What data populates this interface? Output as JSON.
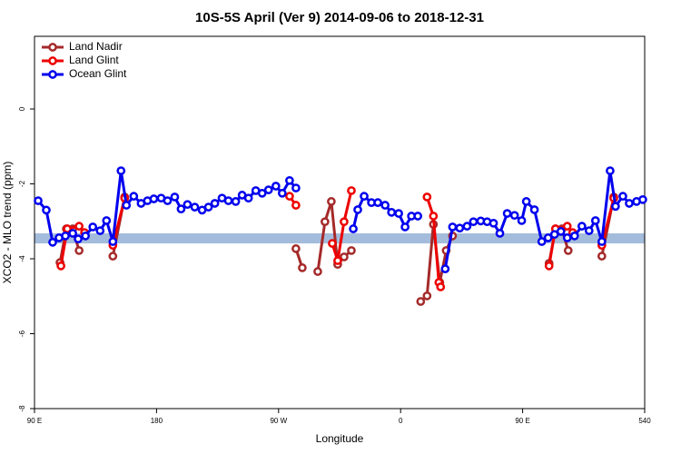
{
  "chart_data": {
    "type": "line",
    "title": "10S-5S April (Ver 9)   2014-09-06 to 2018-12-31",
    "x_label": "Longitude",
    "y_label": "XCO2 - MLO trend (ppm)",
    "xlim": [
      90,
      540
    ],
    "ylim": [
      -8,
      1.94
    ],
    "xticks": [
      {
        "value": 90,
        "label": "90 E"
      },
      180,
      {
        "value": 270,
        "label": "90 W"
      },
      {
        "value": 360,
        "label": "0"
      },
      {
        "value": 450,
        "label": "90 E"
      },
      540
    ],
    "yticks": [
      -8,
      -6,
      -4,
      -2,
      0
    ],
    "legend": "top-left",
    "band": {
      "ylim": [
        -3.59,
        -3.32
      ],
      "color": "#a4bcdc"
    },
    "series": [
      {
        "name": "Land Nadir",
        "color": "#a52a2a",
        "x": [
          108.8,
          113.5,
          118.2,
          122.9,
          null,
          147.8,
          156.5,
          null,
          282.8,
          287.5,
          null,
          298.9,
          304.2,
          308.9,
          313.6,
          318.3,
          323.7,
          null,
          374.8,
          379.5,
          384.2,
          388.9,
          393.6,
          398.3,
          null,
          469.5,
          474.2,
          478.9,
          483.6,
          null,
          508.4,
          517.2
        ],
        "values": [
          -4.1,
          -3.2,
          -3.2,
          -3.78,
          null,
          -3.93,
          -2.35,
          null,
          -3.73,
          -4.24,
          null,
          -4.34,
          -3.01,
          -2.47,
          -4.15,
          -3.95,
          -3.78,
          null,
          -5.14,
          -4.99,
          -3.08,
          -4.63,
          -3.78,
          -3.39,
          null,
          -4.12,
          -3.2,
          -3.2,
          -3.78,
          null,
          -3.93,
          -2.35
        ]
      },
      {
        "name": "Land Glint",
        "color": "#ee0000",
        "x": [
          109.5,
          114.2,
          122.9,
          126.9,
          null,
          147.8,
          156.5,
          null,
          278.1,
          282.8,
          null,
          309.6,
          313.6,
          318.3,
          323.7,
          null,
          379.5,
          384.2,
          388.2,
          389.5,
          null,
          469.5,
          474.2,
          482.9,
          486.9,
          null,
          508.4,
          517.2
        ],
        "values": [
          -4.19,
          -3.2,
          -3.13,
          -3.3,
          null,
          -3.64,
          -2.38,
          null,
          -2.33,
          -2.57,
          null,
          -3.59,
          -4.05,
          -3.01,
          -2.18,
          null,
          -2.35,
          -2.86,
          -4.63,
          -4.75,
          null,
          -4.19,
          -3.2,
          -3.13,
          -3.3,
          null,
          -3.64,
          -2.38
        ]
      },
      {
        "name": "Ocean Glint",
        "color": "#0000ee",
        "x": [
          92.7,
          98.7,
          103.4,
          108.1,
          112.8,
          118.2,
          122.2,
          127.6,
          133.0,
          138.4,
          143.1,
          147.8,
          153.8,
          157.8,
          163.2,
          168.6,
          173.3,
          178.0,
          183.4,
          188.1,
          193.4,
          198.1,
          202.8,
          208.2,
          213.6,
          218.3,
          223.0,
          228.3,
          233.0,
          238.4,
          243.1,
          247.8,
          253.2,
          257.9,
          262.6,
          268.0,
          272.7,
          278.1,
          282.8,
          null,
          325.1,
          328.4,
          333.1,
          338.5,
          343.2,
          348.6,
          353.3,
          358.6,
          363.3,
          368.0,
          372.7,
          null,
          392.9,
          398.3,
          403.6,
          409.0,
          413.7,
          419.1,
          423.8,
          428.5,
          433.2,
          438.6,
          444.0,
          449.3,
          452.7,
          458.7,
          464.1,
          468.8,
          473.5,
          478.2,
          482.9,
          488.3,
          493.7,
          499.0,
          503.7,
          508.4,
          514.5,
          518.5,
          523.9,
          528.6,
          534.0,
          538.6
        ],
        "values": [
          -2.45,
          -2.7,
          -3.56,
          -3.44,
          -3.39,
          -3.32,
          -3.47,
          -3.39,
          -3.15,
          -3.25,
          -2.98,
          -3.54,
          -1.65,
          -2.57,
          -2.33,
          -2.52,
          -2.45,
          -2.4,
          -2.38,
          -2.45,
          -2.35,
          -2.67,
          -2.55,
          -2.62,
          -2.7,
          -2.62,
          -2.52,
          -2.38,
          -2.45,
          -2.47,
          -2.3,
          -2.38,
          -2.18,
          -2.25,
          -2.16,
          -2.06,
          -2.25,
          -1.91,
          -2.11,
          null,
          -3.2,
          -2.69,
          -2.33,
          -2.5,
          -2.5,
          -2.57,
          -2.76,
          -2.79,
          -3.15,
          -2.86,
          -2.86,
          null,
          -4.27,
          -3.15,
          -3.18,
          -3.13,
          -3.01,
          -2.99,
          -3.01,
          -3.05,
          -3.32,
          -2.79,
          -2.84,
          -2.98,
          -2.47,
          -2.69,
          -3.54,
          -3.44,
          -3.35,
          -3.27,
          -3.44,
          -3.39,
          -3.13,
          -3.25,
          -2.98,
          -3.54,
          -1.65,
          -2.6,
          -2.33,
          -2.52,
          -2.47,
          -2.42
        ]
      }
    ]
  }
}
